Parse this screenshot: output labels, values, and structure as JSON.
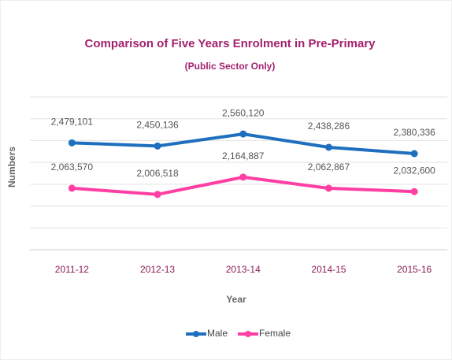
{
  "chart_data": {
    "type": "line",
    "title": "Comparison of Five Years Enrolment in Pre-Primary",
    "subtitle": "(Public Sector Only)",
    "y_label": "Numbers",
    "x_label": "Year",
    "categories": [
      "2011-12",
      "2012-13",
      "2013-14",
      "2014-15",
      "2015-16"
    ],
    "series": [
      {
        "name": "Male",
        "color": "#1f6fbf",
        "values": [
          2479101,
          2450136,
          2560120,
          2438286,
          2380336
        ],
        "value_labels": [
          "2,479,101",
          "2,450,136",
          "2,560,120",
          "2,438,286",
          "2,380,336"
        ]
      },
      {
        "name": "Female",
        "color": "#ff3fa3",
        "values": [
          2063570,
          2006518,
          2164887,
          2062867,
          2032600
        ],
        "value_labels": [
          "2,063,570",
          "2,006,518",
          "2,164,887",
          "2,062,867",
          "2,032,600"
        ]
      }
    ],
    "ylim": [
      1500000,
      2900000
    ],
    "yticks": [
      1500000,
      1700000,
      1900000,
      2100000,
      2300000,
      2500000,
      2700000,
      2900000
    ],
    "grid": true,
    "legend": "bottom"
  }
}
